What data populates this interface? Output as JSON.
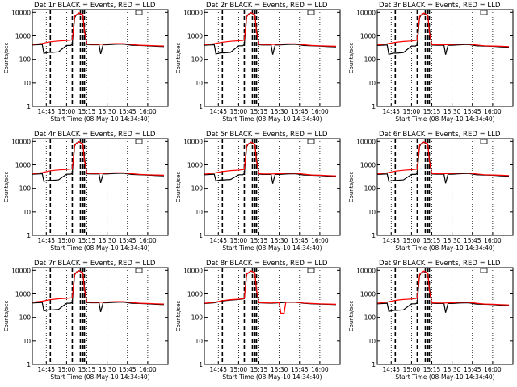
{
  "page": {
    "background": "#ffffff",
    "colors": {
      "events": "#000000",
      "lld": "#ff0000",
      "axes": "#000000"
    }
  },
  "common": {
    "ylabel": "Counts/sec",
    "xlabel": "Start Time (08-May-10 14:34:40)",
    "x_tick_labels": [
      "14:45",
      "15:00",
      "15:15",
      "15:30",
      "15:45",
      "16:00"
    ],
    "x_ticks_hours": [
      14.75,
      15.0,
      15.25,
      15.5,
      15.75,
      16.0
    ],
    "y_tick_labels": [
      "1",
      "10",
      "100",
      "1000",
      "10000"
    ],
    "y_ticks": [
      1,
      10,
      100,
      1000,
      10000
    ],
    "xlim_hours": [
      14.578,
      16.25
    ],
    "ylim": [
      1,
      13000
    ],
    "y_scale": "log",
    "vertical_markers_hours": [
      14.8,
      15.07,
      15.17,
      15.2,
      15.22
    ]
  },
  "chart_data": [
    {
      "type": "line",
      "title": "Det 1r BLACK = Events, RED = LLD",
      "series": [
        {
          "name": "Events",
          "color": "#000000",
          "x": [
            14.58,
            14.7,
            14.72,
            14.78,
            14.82,
            14.9,
            15.0,
            15.05,
            15.07,
            15.1,
            15.12,
            15.15,
            15.2,
            15.22,
            15.25,
            15.3,
            15.35,
            15.4,
            15.42,
            15.45,
            15.5,
            15.6,
            15.7,
            15.8,
            15.9,
            16.0,
            16.1,
            16.2
          ],
          "y": [
            410,
            430,
            180,
            200,
            200,
            210,
            390,
            390,
            450,
            6000,
            8000,
            9000,
            8000,
            2000,
            430,
            420,
            420,
            420,
            170,
            420,
            420,
            440,
            450,
            400,
            390,
            380,
            360,
            350
          ]
        },
        {
          "name": "LLD",
          "color": "#ff0000",
          "x": [
            14.58,
            14.7,
            14.8,
            14.9,
            15.0,
            15.07,
            15.1,
            15.15,
            15.2,
            15.22,
            15.25,
            15.3,
            15.4,
            15.5,
            15.6,
            15.7,
            15.8,
            15.9,
            16.0,
            16.1,
            16.2
          ],
          "y": [
            430,
            480,
            560,
            610,
            640,
            680,
            7000,
            9500,
            8000,
            1500,
            450,
            440,
            440,
            450,
            470,
            470,
            430,
            400,
            390,
            380,
            370
          ]
        }
      ]
    },
    {
      "type": "line",
      "title": "Det 2r BLACK = Events, RED = LLD",
      "series": [
        {
          "name": "Events",
          "color": "#000000",
          "x": [
            14.58,
            14.7,
            14.72,
            14.78,
            14.82,
            14.9,
            15.0,
            15.05,
            15.07,
            15.1,
            15.12,
            15.15,
            15.2,
            15.22,
            15.25,
            15.3,
            15.35,
            15.4,
            15.42,
            15.45,
            15.5,
            15.6,
            15.7,
            15.8,
            15.9,
            16.0,
            16.1,
            16.2
          ],
          "y": [
            400,
            420,
            170,
            190,
            190,
            200,
            380,
            380,
            430,
            6500,
            8500,
            9500,
            8000,
            2000,
            420,
            410,
            410,
            410,
            160,
            410,
            410,
            430,
            440,
            390,
            380,
            370,
            350,
            340
          ]
        },
        {
          "name": "LLD",
          "color": "#ff0000",
          "x": [
            14.58,
            14.7,
            14.8,
            14.9,
            15.0,
            15.07,
            15.1,
            15.15,
            15.2,
            15.22,
            15.25,
            15.3,
            15.4,
            15.5,
            15.6,
            15.7,
            15.8,
            15.9,
            16.0,
            16.1,
            16.2
          ],
          "y": [
            420,
            470,
            540,
            590,
            620,
            660,
            7000,
            9800,
            8000,
            1500,
            440,
            430,
            430,
            440,
            460,
            460,
            420,
            390,
            380,
            370,
            360
          ]
        }
      ]
    },
    {
      "type": "line",
      "title": "Det 3r BLACK = Events, RED = LLD",
      "series": [
        {
          "name": "Events",
          "color": "#000000",
          "x": [
            14.58,
            14.7,
            14.72,
            14.78,
            14.82,
            14.9,
            15.0,
            15.05,
            15.07,
            15.1,
            15.12,
            15.15,
            15.2,
            15.22,
            15.25,
            15.3,
            15.35,
            15.4,
            15.42,
            15.45,
            15.5,
            15.6,
            15.7,
            15.8,
            15.9,
            16.0,
            16.1,
            16.2
          ],
          "y": [
            390,
            410,
            165,
            185,
            185,
            195,
            370,
            370,
            420,
            6000,
            8000,
            9000,
            7500,
            1900,
            410,
            400,
            400,
            400,
            160,
            400,
            400,
            420,
            430,
            380,
            370,
            360,
            340,
            330
          ]
        },
        {
          "name": "LLD",
          "color": "#ff0000",
          "x": [
            14.58,
            14.7,
            14.8,
            14.9,
            15.0,
            15.07,
            15.1,
            15.15,
            15.2,
            15.22,
            15.25,
            15.3,
            15.4,
            15.5,
            15.6,
            15.7,
            15.8,
            15.9,
            16.0,
            16.1,
            16.2
          ],
          "y": [
            410,
            460,
            530,
            580,
            610,
            650,
            6800,
            9300,
            7800,
            1400,
            430,
            420,
            420,
            430,
            450,
            450,
            410,
            380,
            370,
            360,
            350
          ]
        }
      ]
    },
    {
      "type": "line",
      "title": "Det 4r BLACK = Events, RED = LLD",
      "series": [
        {
          "name": "Events",
          "color": "#000000",
          "x": [
            14.58,
            14.7,
            14.72,
            14.78,
            14.82,
            14.9,
            15.0,
            15.05,
            15.07,
            15.1,
            15.12,
            15.15,
            15.2,
            15.22,
            15.25,
            15.3,
            15.35,
            15.4,
            15.42,
            15.45,
            15.5,
            15.6,
            15.7,
            15.8,
            15.9,
            16.0,
            16.1,
            16.2
          ],
          "y": [
            400,
            420,
            200,
            220,
            220,
            230,
            400,
            400,
            440,
            6500,
            8500,
            9500,
            8000,
            2000,
            420,
            410,
            410,
            410,
            170,
            410,
            410,
            430,
            440,
            390,
            380,
            370,
            350,
            340
          ]
        },
        {
          "name": "LLD",
          "color": "#ff0000",
          "x": [
            14.58,
            14.7,
            14.8,
            14.9,
            15.0,
            15.07,
            15.1,
            15.15,
            15.2,
            15.22,
            15.25,
            15.3,
            15.4,
            15.5,
            15.6,
            15.7,
            15.8,
            15.9,
            16.0,
            16.1,
            16.2
          ],
          "y": [
            420,
            470,
            560,
            610,
            640,
            680,
            7200,
            9800,
            8000,
            1500,
            440,
            430,
            430,
            440,
            460,
            460,
            420,
            390,
            380,
            370,
            360
          ]
        }
      ]
    },
    {
      "type": "line",
      "title": "Det 5r BLACK = Events, RED = LLD",
      "series": [
        {
          "name": "Events",
          "color": "#000000",
          "x": [
            14.58,
            14.7,
            14.72,
            14.78,
            14.82,
            14.9,
            15.0,
            15.05,
            15.07,
            15.1,
            15.12,
            15.15,
            15.2,
            15.22,
            15.25,
            15.3,
            15.35,
            15.4,
            15.42,
            15.45,
            15.5,
            15.6,
            15.7,
            15.8,
            15.9,
            16.0,
            16.1,
            16.2
          ],
          "y": [
            380,
            400,
            210,
            230,
            230,
            240,
            380,
            380,
            420,
            6000,
            8000,
            9000,
            7500,
            1900,
            400,
            390,
            390,
            390,
            160,
            390,
            390,
            410,
            420,
            370,
            360,
            350,
            330,
            320
          ]
        },
        {
          "name": "LLD",
          "color": "#ff0000",
          "x": [
            14.58,
            14.7,
            14.8,
            14.9,
            15.0,
            15.07,
            15.1,
            15.15,
            15.2,
            15.22,
            15.25,
            15.3,
            15.4,
            15.5,
            15.6,
            15.7,
            15.8,
            15.9,
            16.0,
            16.1,
            16.2
          ],
          "y": [
            400,
            450,
            520,
            570,
            600,
            640,
            6800,
            9300,
            7800,
            1400,
            420,
            410,
            410,
            420,
            440,
            440,
            400,
            370,
            360,
            350,
            340
          ]
        }
      ]
    },
    {
      "type": "line",
      "title": "Det 6r BLACK = Events, RED = LLD",
      "series": [
        {
          "name": "Events",
          "color": "#000000",
          "x": [
            14.58,
            14.7,
            14.72,
            14.78,
            14.82,
            14.9,
            15.0,
            15.05,
            15.07,
            15.1,
            15.12,
            15.15,
            15.2,
            15.22,
            15.25,
            15.3,
            15.35,
            15.4,
            15.42,
            15.45,
            15.5,
            15.6,
            15.7,
            15.8,
            15.9,
            16.0,
            16.1,
            16.2
          ],
          "y": [
            390,
            410,
            200,
            220,
            220,
            230,
            390,
            390,
            430,
            6200,
            8200,
            9200,
            7700,
            1900,
            410,
            400,
            400,
            400,
            165,
            400,
            400,
            420,
            430,
            380,
            370,
            360,
            340,
            330
          ]
        },
        {
          "name": "LLD",
          "color": "#ff0000",
          "x": [
            14.58,
            14.7,
            14.8,
            14.9,
            15.0,
            15.07,
            15.1,
            15.15,
            15.2,
            15.22,
            15.25,
            15.3,
            15.4,
            15.5,
            15.6,
            15.7,
            15.8,
            15.9,
            16.0,
            16.1,
            16.2
          ],
          "y": [
            410,
            460,
            540,
            590,
            620,
            660,
            7000,
            9500,
            7900,
            1450,
            430,
            420,
            420,
            430,
            450,
            450,
            410,
            380,
            370,
            360,
            350
          ]
        }
      ]
    },
    {
      "type": "line",
      "title": "Det 7r BLACK = Events, RED = LLD",
      "series": [
        {
          "name": "Events",
          "color": "#000000",
          "x": [
            14.58,
            14.7,
            14.72,
            14.78,
            14.82,
            14.9,
            15.0,
            15.05,
            15.07,
            15.1,
            15.12,
            15.15,
            15.2,
            15.22,
            15.25,
            15.3,
            15.35,
            15.4,
            15.42,
            15.45,
            15.5,
            15.6,
            15.7,
            15.8,
            15.9,
            16.0,
            16.1,
            16.2
          ],
          "y": [
            410,
            430,
            190,
            210,
            210,
            220,
            400,
            400,
            450,
            6500,
            8500,
            9500,
            8000,
            2000,
            430,
            420,
            420,
            420,
            170,
            420,
            420,
            440,
            450,
            400,
            390,
            380,
            360,
            350
          ]
        },
        {
          "name": "LLD",
          "color": "#ff0000",
          "x": [
            14.58,
            14.7,
            14.8,
            14.9,
            15.0,
            15.07,
            15.1,
            15.15,
            15.2,
            15.22,
            15.25,
            15.3,
            15.4,
            15.5,
            15.6,
            15.7,
            15.8,
            15.9,
            16.0,
            16.1,
            16.2
          ],
          "y": [
            440,
            490,
            570,
            620,
            650,
            690,
            7200,
            9800,
            8000,
            1500,
            450,
            440,
            440,
            450,
            470,
            470,
            430,
            400,
            390,
            380,
            370
          ]
        }
      ]
    },
    {
      "type": "line",
      "title": "Det 8r BLACK = Events, RED = LLD",
      "series": [
        {
          "name": "Events",
          "color": "#000000",
          "x": [
            14.58,
            14.7,
            14.8,
            14.9,
            15.0,
            15.07,
            15.1,
            15.15,
            15.2,
            15.22,
            15.25,
            15.3,
            15.4,
            15.5,
            15.6,
            15.7,
            15.8,
            15.9,
            16.0,
            16.1,
            16.2
          ],
          "y": [
            390,
            420,
            500,
            550,
            580,
            620,
            6800,
            9300,
            7800,
            1400,
            420,
            410,
            400,
            420,
            440,
            440,
            400,
            380,
            370,
            360,
            350
          ]
        },
        {
          "name": "LLD",
          "color": "#ff0000",
          "x": [
            14.58,
            14.7,
            14.8,
            14.9,
            15.0,
            15.07,
            15.1,
            15.15,
            15.2,
            15.22,
            15.25,
            15.3,
            15.4,
            15.5,
            15.52,
            15.56,
            15.58,
            15.6,
            15.7,
            15.8,
            15.9,
            16.0,
            16.1,
            16.2
          ],
          "y": [
            400,
            440,
            520,
            570,
            600,
            640,
            7000,
            9500,
            8000,
            1500,
            430,
            420,
            410,
            430,
            150,
            150,
            430,
            450,
            450,
            410,
            390,
            380,
            370,
            360
          ]
        }
      ]
    },
    {
      "type": "line",
      "title": "Det 9r BLACK = Events, RED = LLD",
      "series": [
        {
          "name": "Events",
          "color": "#000000",
          "x": [
            14.58,
            14.7,
            14.72,
            14.78,
            14.82,
            14.9,
            15.0,
            15.05,
            15.07,
            15.1,
            15.12,
            15.15,
            15.2,
            15.22,
            15.25,
            15.3,
            15.35,
            15.4,
            15.42,
            15.45,
            15.5,
            15.6,
            15.7,
            15.8,
            15.9,
            16.0,
            16.1,
            16.2
          ],
          "y": [
            380,
            400,
            180,
            200,
            200,
            210,
            380,
            380,
            420,
            6000,
            8000,
            9000,
            7500,
            1900,
            400,
            390,
            390,
            390,
            160,
            390,
            390,
            410,
            420,
            370,
            360,
            350,
            330,
            320
          ]
        },
        {
          "name": "LLD",
          "color": "#ff0000",
          "x": [
            14.58,
            14.7,
            14.8,
            14.9,
            15.0,
            15.07,
            15.1,
            15.15,
            15.2,
            15.22,
            15.25,
            15.3,
            15.4,
            15.5,
            15.6,
            15.7,
            15.8,
            15.9,
            16.0,
            16.1,
            16.2
          ],
          "y": [
            400,
            450,
            530,
            580,
            610,
            650,
            6800,
            9300,
            7800,
            1400,
            420,
            410,
            410,
            420,
            440,
            440,
            400,
            370,
            360,
            350,
            340
          ]
        }
      ]
    }
  ]
}
